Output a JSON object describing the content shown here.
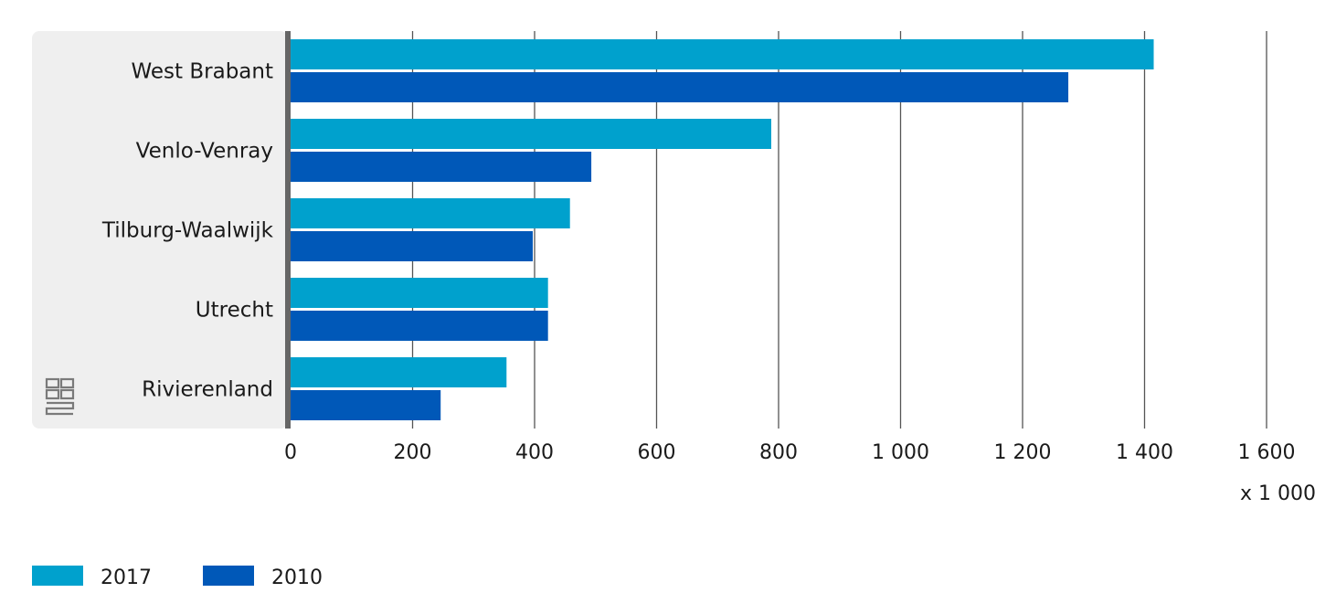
{
  "chart_data": {
    "type": "bar",
    "orientation": "horizontal",
    "categories": [
      "West Brabant",
      "Venlo-Venray",
      "Tilburg-Waalwijk",
      "Utrecht",
      "Rivierenland"
    ],
    "series": [
      {
        "name": "2017",
        "values": [
          1415,
          788,
          458,
          422,
          354
        ]
      },
      {
        "name": "2010",
        "values": [
          1275,
          493,
          397,
          422,
          246
        ]
      }
    ],
    "xlim": [
      0,
      1600
    ],
    "xticks": [
      0,
      200,
      400,
      600,
      800,
      1000,
      1200,
      1400,
      1600
    ],
    "xtick_labels": [
      "0",
      "200",
      "400",
      "600",
      "800",
      "1 000",
      "1 200",
      "1 400",
      "1 600"
    ],
    "unit_label": "x 1 000",
    "grid": true,
    "legend_position": "bottom-left",
    "colors": {
      "2017": "#00A1CD",
      "2010": "#0058B8",
      "axis": "#666666",
      "band": "#EFEFEF",
      "grid": "#555555"
    }
  }
}
